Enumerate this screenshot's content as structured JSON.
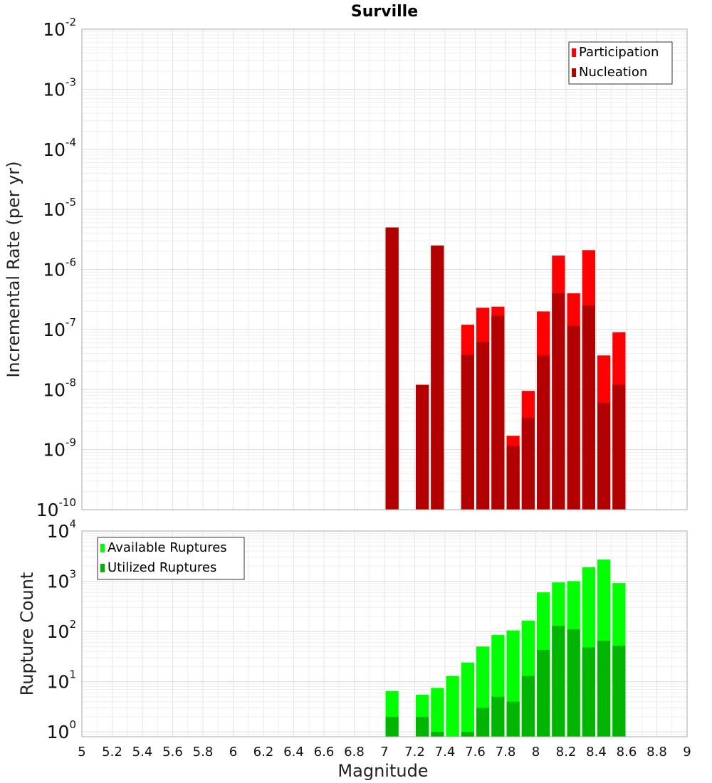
{
  "chart_data": [
    {
      "type": "bar",
      "title": "Surville",
      "xlabel": "",
      "ylabel": "Incremental Rate (per yr)",
      "y_scale": "log",
      "ylim": [
        1e-10,
        0.01
      ],
      "xlim": [
        5,
        9
      ],
      "y_ticks": [
        {
          "base": "10",
          "exp": "-10"
        },
        {
          "base": "10",
          "exp": "-9"
        },
        {
          "base": "10",
          "exp": "-8"
        },
        {
          "base": "10",
          "exp": "-7"
        },
        {
          "base": "10",
          "exp": "-6"
        },
        {
          "base": "10",
          "exp": "-5"
        },
        {
          "base": "10",
          "exp": "-4"
        },
        {
          "base": "10",
          "exp": "-3"
        },
        {
          "base": "10",
          "exp": "-2"
        }
      ],
      "legend_position": "top-right",
      "grid": true,
      "x": [
        7.05,
        7.25,
        7.35,
        7.55,
        7.65,
        7.75,
        7.85,
        7.95,
        8.05,
        8.15,
        8.25,
        8.35,
        8.45,
        8.55
      ],
      "series": [
        {
          "name": "Participation",
          "color": "#ff0000",
          "values": [
            5e-06,
            1.2e-08,
            2.5e-06,
            1.2e-07,
            2.3e-07,
            2.4e-07,
            1.7e-09,
            9.5e-09,
            2e-07,
            1.7e-06,
            4e-07,
            2.1e-06,
            3.7e-08,
            9e-08
          ]
        },
        {
          "name": "Nucleation",
          "color": "#b20000",
          "values": [
            5e-06,
            1.2e-08,
            2.5e-06,
            3.8e-08,
            6.2e-08,
            1.7e-07,
            1.15e-09,
            3.4e-09,
            3.7e-08,
            4e-07,
            1.15e-07,
            2.5e-07,
            6e-09,
            1.2e-08
          ]
        }
      ]
    },
    {
      "type": "bar",
      "title": "",
      "xlabel": "Magnitude",
      "ylabel": "Rupture Count",
      "y_scale": "log",
      "ylim": [
        0.8,
        10000
      ],
      "xlim": [
        5,
        9
      ],
      "x_ticks": [
        "5",
        "5.2",
        "5.4",
        "5.6",
        "5.8",
        "6",
        "6.2",
        "6.4",
        "6.6",
        "6.8",
        "7",
        "7.2",
        "7.4",
        "7.6",
        "7.8",
        "8",
        "8.2",
        "8.4",
        "8.6",
        "8.8",
        "9"
      ],
      "y_ticks": [
        {
          "base": "10",
          "exp": "0"
        },
        {
          "base": "10",
          "exp": "1"
        },
        {
          "base": "10",
          "exp": "2"
        },
        {
          "base": "10",
          "exp": "3"
        },
        {
          "base": "10",
          "exp": "4"
        }
      ],
      "legend_position": "top-left",
      "grid": true,
      "x": [
        7.05,
        7.25,
        7.35,
        7.45,
        7.55,
        7.65,
        7.75,
        7.85,
        7.95,
        8.05,
        8.15,
        8.25,
        8.35,
        8.45,
        8.55
      ],
      "series": [
        {
          "name": "Available Ruptures",
          "color": "#00ff00",
          "values": [
            6.5,
            5.5,
            7.5,
            13,
            24,
            50,
            85,
            105,
            165,
            600,
            950,
            1000,
            1900,
            2700,
            920
          ]
        },
        {
          "name": "Utilized Ruptures",
          "color": "#00b500",
          "values": [
            2,
            2,
            1,
            null,
            1,
            3,
            5,
            4,
            13,
            43,
            130,
            110,
            48,
            65,
            52
          ]
        }
      ]
    }
  ]
}
